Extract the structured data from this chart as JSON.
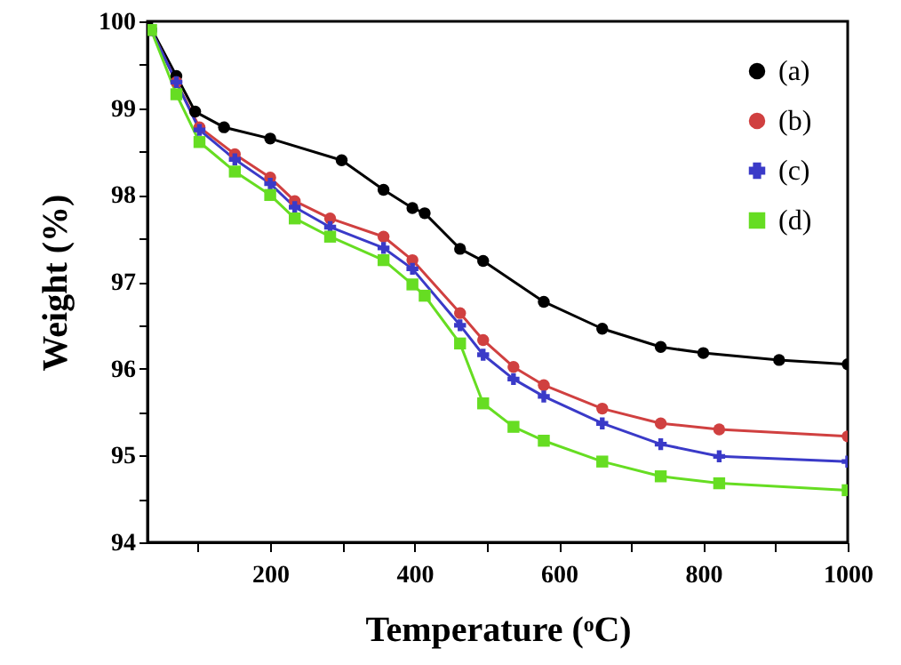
{
  "chart_data": {
    "type": "line",
    "xlabel": "Temperature (ᵒC)",
    "ylabel": "Weight (%)",
    "xlim": [
      30,
      1000
    ],
    "ylim": [
      94,
      100
    ],
    "xticks": [
      {
        "value": 100,
        "label": null
      },
      200,
      {
        "value": 300,
        "label": null
      },
      400,
      {
        "value": 500,
        "label": null
      },
      600,
      {
        "value": 700,
        "label": null
      },
      800,
      {
        "value": 900,
        "label": null
      },
      1000
    ],
    "yticks": [
      94,
      {
        "value": 94.5,
        "label": null
      },
      95,
      {
        "value": 95.5,
        "label": null
      },
      96,
      {
        "value": 96.5,
        "label": null
      },
      97,
      {
        "value": 97.5,
        "label": null
      },
      98,
      {
        "value": 98.5,
        "label": null
      },
      99,
      {
        "value": 99.5,
        "label": null
      },
      100
    ],
    "grid": false,
    "legend": "top right",
    "line_style": "solid",
    "series": [
      {
        "name": "(a)",
        "color": "#000000",
        "marker": "circle",
        "x": [
          30,
          70,
          96,
          136,
          200,
          299,
          357,
          397,
          414,
          463,
          495,
          579,
          660,
          741,
          800,
          905,
          1000
        ],
        "values": [
          100,
          99.37,
          98.96,
          98.78,
          98.65,
          98.4,
          98.06,
          97.85,
          97.79,
          97.38,
          97.24,
          96.77,
          96.46,
          96.25,
          96.18,
          96.1,
          96.05
        ]
      },
      {
        "name": "(b)",
        "color": "#d04040",
        "marker": "circle",
        "x": [
          35,
          70,
          102,
          151,
          200,
          234,
          283,
          357,
          397,
          463,
          495,
          537,
          579,
          660,
          741,
          822,
          1000
        ],
        "values": [
          99.9,
          99.3,
          98.78,
          98.47,
          98.2,
          97.93,
          97.73,
          97.52,
          97.25,
          96.64,
          96.33,
          96.02,
          95.81,
          95.54,
          95.37,
          95.3,
          95.22
        ]
      },
      {
        "name": "(c)",
        "color": "#3a3ac8",
        "marker": "cross",
        "x": [
          35,
          70,
          102,
          151,
          200,
          234,
          283,
          357,
          397,
          463,
          495,
          537,
          579,
          660,
          741,
          822,
          1000
        ],
        "values": [
          99.9,
          99.3,
          98.75,
          98.41,
          98.13,
          97.86,
          97.63,
          97.39,
          97.15,
          96.5,
          96.16,
          95.88,
          95.68,
          95.37,
          95.13,
          94.99,
          94.93
        ]
      },
      {
        "name": "(d)",
        "color": "#66dd22",
        "marker": "square",
        "x": [
          35,
          70,
          102,
          151,
          200,
          234,
          283,
          357,
          397,
          414,
          463,
          495,
          537,
          579,
          660,
          741,
          822,
          1000
        ],
        "values": [
          99.9,
          99.16,
          98.61,
          98.27,
          98.0,
          97.73,
          97.52,
          97.25,
          96.97,
          96.84,
          96.29,
          95.6,
          95.33,
          95.17,
          94.93,
          94.76,
          94.68,
          94.6
        ]
      }
    ]
  }
}
